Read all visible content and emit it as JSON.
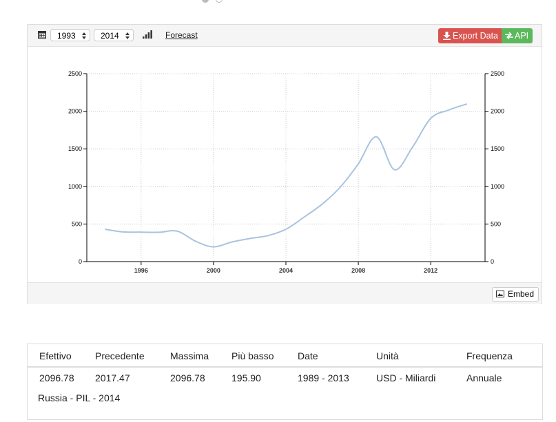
{
  "toolbar": {
    "start_year": "1993",
    "end_year": "2014",
    "forecast": "Forecast",
    "export": "Export Data",
    "api": "API",
    "embed": "Embed"
  },
  "chart_data": {
    "type": "line",
    "x": [
      1994,
      1995,
      1996,
      1997,
      1998,
      1999,
      2000,
      2001,
      2002,
      2003,
      2004,
      2005,
      2006,
      2007,
      2008,
      2009,
      2010,
      2011,
      2012,
      2013,
      2014
    ],
    "series": [
      {
        "name": "Russia - PIL",
        "color": "#a9c3df",
        "values": [
          430,
          395,
          392,
          390,
          405,
          272,
          196,
          260,
          307,
          345,
          430,
          591,
          764,
          990,
          1300,
          1661,
          1222,
          1525,
          1905,
          2017,
          2097
        ]
      }
    ],
    "xlim": [
      1993,
      2015
    ],
    "xticks": [
      1996,
      2000,
      2004,
      2008,
      2012
    ],
    "ylim": [
      0,
      2500
    ],
    "yticks": [
      0,
      500,
      1000,
      1500,
      2000,
      2500
    ],
    "y2lim": [
      0,
      2500
    ],
    "y2ticks": [
      0,
      500,
      1000,
      1500,
      2000,
      2500
    ],
    "grid": true
  },
  "table": {
    "headers": [
      "Efettivo",
      "Precedente",
      "Massima",
      "Più basso",
      "Date",
      "Unità",
      "Frequenza"
    ],
    "rows": [
      [
        "2096.78",
        "2017.47",
        "2096.78",
        "195.90",
        "1989 - 2013",
        "USD - Miliardi",
        "Annuale"
      ]
    ],
    "caption": "Russia - PIL - 2014"
  }
}
